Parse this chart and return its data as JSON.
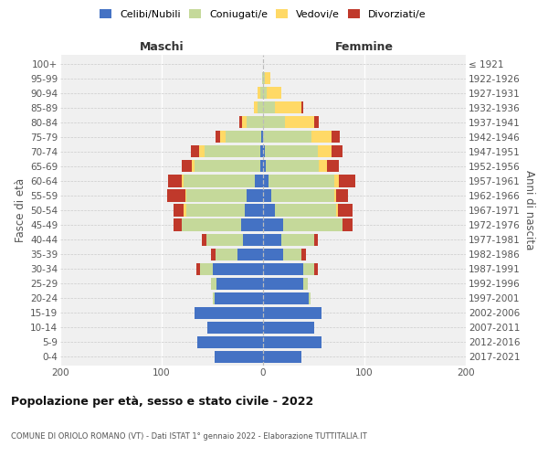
{
  "age_groups": [
    "0-4",
    "5-9",
    "10-14",
    "15-19",
    "20-24",
    "25-29",
    "30-34",
    "35-39",
    "40-44",
    "45-49",
    "50-54",
    "55-59",
    "60-64",
    "65-69",
    "70-74",
    "75-79",
    "80-84",
    "85-89",
    "90-94",
    "95-99",
    "100+"
  ],
  "birth_years": [
    "2017-2021",
    "2012-2016",
    "2007-2011",
    "2002-2006",
    "1997-2001",
    "1992-1996",
    "1987-1991",
    "1982-1986",
    "1977-1981",
    "1972-1976",
    "1967-1971",
    "1962-1966",
    "1957-1961",
    "1952-1956",
    "1947-1951",
    "1942-1946",
    "1937-1941",
    "1932-1936",
    "1927-1931",
    "1922-1926",
    "≤ 1921"
  ],
  "male_celibi": [
    48,
    65,
    55,
    68,
    48,
    46,
    50,
    25,
    20,
    22,
    18,
    16,
    8,
    3,
    3,
    2,
    0,
    0,
    0,
    0,
    0
  ],
  "male_coniugati": [
    0,
    0,
    0,
    0,
    2,
    5,
    12,
    22,
    36,
    58,
    58,
    60,
    70,
    65,
    55,
    35,
    16,
    5,
    3,
    1,
    0
  ],
  "male_vedovi": [
    0,
    0,
    0,
    0,
    0,
    0,
    0,
    0,
    0,
    0,
    2,
    1,
    2,
    2,
    5,
    5,
    5,
    4,
    2,
    0,
    0
  ],
  "male_divorziati": [
    0,
    0,
    0,
    0,
    0,
    0,
    4,
    4,
    4,
    8,
    10,
    18,
    14,
    10,
    8,
    5,
    2,
    0,
    0,
    0,
    0
  ],
  "female_nubili": [
    38,
    58,
    50,
    58,
    45,
    40,
    40,
    20,
    18,
    20,
    12,
    8,
    5,
    3,
    2,
    0,
    0,
    0,
    0,
    0,
    0
  ],
  "female_coniugate": [
    0,
    0,
    0,
    0,
    2,
    4,
    10,
    18,
    32,
    58,
    60,
    62,
    65,
    52,
    52,
    48,
    22,
    12,
    4,
    2,
    0
  ],
  "female_vedove": [
    0,
    0,
    0,
    0,
    0,
    0,
    0,
    0,
    0,
    0,
    2,
    2,
    5,
    8,
    14,
    20,
    28,
    26,
    14,
    5,
    0
  ],
  "female_divorziate": [
    0,
    0,
    0,
    0,
    0,
    0,
    4,
    4,
    4,
    10,
    14,
    12,
    16,
    12,
    10,
    8,
    5,
    2,
    0,
    0,
    0
  ],
  "color_celibi": "#4472C4",
  "color_coniugati": "#C5D99A",
  "color_vedovi": "#FFD966",
  "color_divorziati": "#C0392B",
  "bg_color": "#f0f0f0",
  "title": "Popolazione per età, sesso e stato civile - 2022",
  "subtitle": "COMUNE DI ORIOLO ROMANO (VT) - Dati ISTAT 1° gennaio 2022 - Elaborazione TUTTITALIA.IT",
  "ylabel_left": "Fasce di età",
  "ylabel_right": "Anni di nascita",
  "label_maschi": "Maschi",
  "label_femmine": "Femmine",
  "legend_labels": [
    "Celibi/Nubili",
    "Coniugati/e",
    "Vedovi/e",
    "Divorziati/e"
  ],
  "xlim": 200
}
